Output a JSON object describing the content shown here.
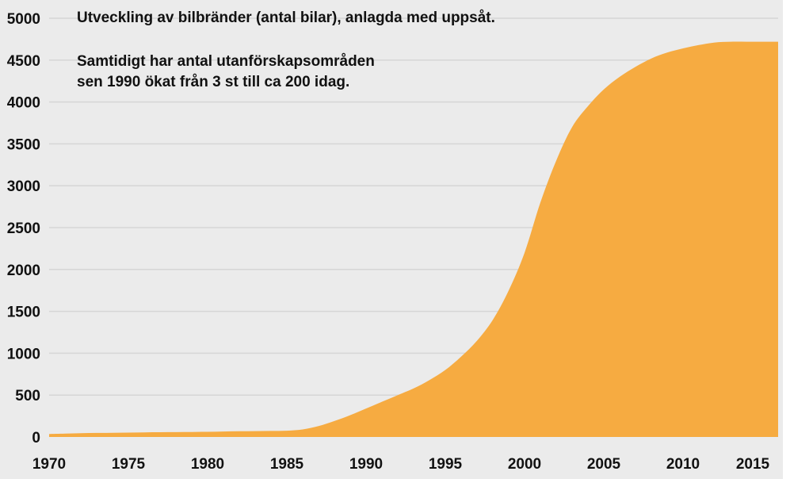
{
  "chart_data": {
    "type": "area",
    "title": "",
    "xlabel": "",
    "ylabel": "",
    "xlim": [
      1970,
      2016
    ],
    "ylim": [
      0,
      5000
    ],
    "grid": true,
    "legend": "none",
    "x_ticks": [
      1970,
      1975,
      1980,
      1985,
      1990,
      1995,
      2000,
      2005,
      2010,
      2015
    ],
    "y_ticks": [
      0,
      500,
      1000,
      1500,
      2000,
      2500,
      3000,
      3500,
      4000,
      4500,
      5000
    ],
    "annotations": [
      "Utveckling av bilbränder (antal bilar), anlagda med uppsåt.",
      "Samtidigt har antal utanförskapsområden",
      "sen 1990 ökat från 3 st till ca 200 idag."
    ],
    "series": [
      {
        "color": "#f6ab41",
        "x": [
          1970,
          1971,
          1972,
          1973,
          1974,
          1975,
          1976,
          1977,
          1978,
          1979,
          1980,
          1981,
          1982,
          1983,
          1984,
          1985,
          1986,
          1987,
          1988,
          1989,
          1990,
          1991,
          1992,
          1993,
          1994,
          1995,
          1996,
          1997,
          1998,
          1999,
          2000,
          2001,
          2002,
          2003,
          2004,
          2005,
          2006,
          2007,
          2008,
          2009,
          2010,
          2011,
          2012,
          2013,
          2014,
          2015,
          2016
        ],
        "y": [
          35,
          40,
          45,
          48,
          50,
          52,
          55,
          57,
          58,
          60,
          62,
          65,
          68,
          70,
          72,
          75,
          90,
          130,
          190,
          260,
          340,
          420,
          500,
          580,
          680,
          800,
          960,
          1150,
          1400,
          1750,
          2200,
          2800,
          3300,
          3700,
          3950,
          4150,
          4300,
          4420,
          4520,
          4590,
          4640,
          4680,
          4710,
          4720,
          4720,
          4720,
          4720
        ]
      }
    ]
  },
  "colors": {
    "background": "#ebebeb",
    "area_fill": "#f6ab41",
    "gridline": "#d6d6d6",
    "text": "#111111"
  }
}
